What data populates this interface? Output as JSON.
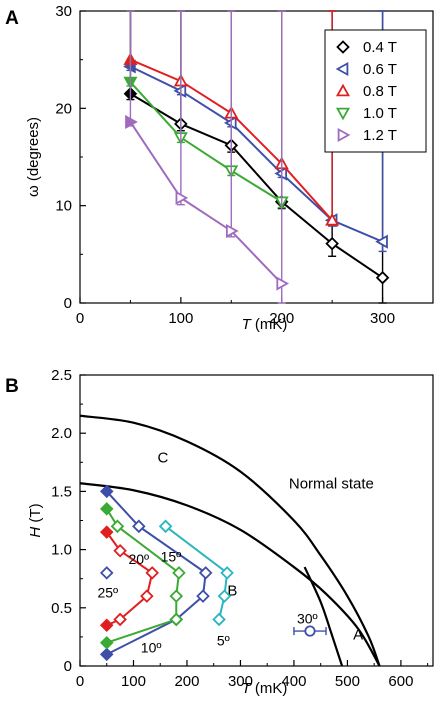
{
  "chart_data": [
    {
      "panel": "A",
      "type": "line",
      "xlabel": {
        "italic": "T",
        "rest": " (mK)"
      },
      "ylabel": "ω (degrees)",
      "xlim": [
        0,
        350
      ],
      "ylim": [
        0,
        30
      ],
      "xticks": [
        "0",
        "100",
        "200",
        "300"
      ],
      "yticks": [
        "0",
        "10",
        "20",
        "30"
      ],
      "legend_position": "top-right",
      "series": [
        {
          "name": "0.4 T",
          "color": "#000000",
          "marker": "diamond",
          "x": [
            50,
            100,
            150,
            200,
            250,
            300
          ],
          "y": [
            21.5,
            18.4,
            16.2,
            10.4,
            6.1,
            2.6
          ],
          "err": [
            0.6,
            0.7,
            0.7,
            0.7,
            1.3,
            2.8
          ]
        },
        {
          "name": "0.6 T",
          "color": "#3d4fa8",
          "marker": "triangle-left",
          "x": [
            50,
            100,
            150,
            200,
            250,
            300
          ],
          "y": [
            24.3,
            21.8,
            18.5,
            13.3,
            8.5,
            6.3
          ],
          "err": [
            0.4,
            0.4,
            0.4,
            0.4,
            0.6,
            1.0
          ]
        },
        {
          "name": "0.8 T",
          "color": "#e02020",
          "marker": "triangle-up",
          "x": [
            50,
            100,
            150,
            200,
            250
          ],
          "y": [
            25.0,
            22.8,
            19.5,
            14.3,
            8.5
          ],
          "err": [
            0.4,
            0.4,
            0.4,
            0.4,
            0.5
          ]
        },
        {
          "name": "1.0 T",
          "color": "#3aaa35",
          "marker": "triangle-down",
          "x": [
            50,
            100,
            150,
            200
          ],
          "y": [
            22.7,
            17.0,
            13.6,
            10.4
          ],
          "err": [
            0.4,
            0.5,
            0.5,
            0.6
          ]
        },
        {
          "name": "1.2 T",
          "color": "#a06bbf",
          "marker": "triangle-right",
          "x": [
            50,
            100,
            150,
            200
          ],
          "y": [
            18.6,
            10.8,
            7.4,
            2.0
          ],
          "err": [
            0.4,
            0.7,
            0.6,
            2.2
          ]
        }
      ]
    },
    {
      "panel": "B",
      "type": "scatter",
      "xlabel": {
        "italic": "T",
        "rest": " (mK)"
      },
      "ylabel": {
        "italic": "H",
        "rest": " (T)"
      },
      "xlim": [
        0,
        660
      ],
      "ylim": [
        0,
        2.5
      ],
      "xticks": [
        "0",
        "100",
        "200",
        "300",
        "400",
        "500",
        "600"
      ],
      "yticks": [
        "0",
        "0.5",
        "1.0",
        "1.5",
        "2.0",
        "2.5"
      ],
      "region_labels": [
        {
          "text": "C",
          "x": 155,
          "y": 1.79
        },
        {
          "text": "Normal state",
          "x": 470,
          "y": 1.57
        },
        {
          "text": "B",
          "x": 285,
          "y": 0.65
        },
        {
          "text": "A",
          "x": 520,
          "y": 0.27
        }
      ],
      "angle_labels": [
        {
          "text": "25º",
          "x": 52,
          "y": 0.63
        },
        {
          "text": "20º",
          "x": 110,
          "y": 0.92
        },
        {
          "text": "15º",
          "x": 170,
          "y": 0.94
        },
        {
          "text": "10º",
          "x": 133,
          "y": 0.16
        },
        {
          "text": "5º",
          "x": 268,
          "y": 0.22
        },
        {
          "text": "30º",
          "x": 425,
          "y": 0.41
        }
      ],
      "boundaries": [
        {
          "x": [
            0,
            100,
            200,
            300,
            400,
            450,
            500,
            540,
            560
          ],
          "y": [
            2.15,
            2.09,
            1.93,
            1.67,
            1.25,
            0.95,
            0.6,
            0.25,
            0.0
          ]
        },
        {
          "x": [
            0,
            100,
            200,
            300,
            400,
            460,
            520,
            560
          ],
          "y": [
            1.57,
            1.51,
            1.38,
            1.17,
            0.85,
            0.62,
            0.32,
            0.0
          ]
        },
        {
          "x": [
            420,
            450,
            470,
            490
          ],
          "y": [
            0.85,
            0.55,
            0.28,
            0.0
          ]
        }
      ],
      "series": [
        {
          "label": "10º",
          "color": "#3d4fa8",
          "x": [
            50,
            180,
            230,
            235,
            110,
            50
          ],
          "y": [
            0.1,
            0.4,
            0.6,
            0.8,
            1.2,
            1.5
          ],
          "filled": [
            true,
            false,
            false,
            false,
            false,
            true
          ]
        },
        {
          "label": "15º",
          "color": "#3aaa35",
          "x": [
            50,
            180,
            180,
            185,
            70,
            50
          ],
          "y": [
            0.2,
            0.4,
            0.6,
            0.8,
            1.2,
            1.35
          ],
          "filled": [
            true,
            false,
            false,
            false,
            false,
            true
          ]
        },
        {
          "label": "20º",
          "color": "#e02020",
          "x": [
            50,
            75,
            125,
            135,
            75,
            50
          ],
          "y": [
            0.35,
            0.4,
            0.6,
            0.8,
            0.99,
            1.15
          ],
          "filled": [
            true,
            false,
            false,
            false,
            false,
            true
          ]
        },
        {
          "label": "5º",
          "color": "#29b6c2",
          "x": [
            260,
            270,
            275,
            160
          ],
          "y": [
            0.4,
            0.6,
            0.8,
            1.2
          ],
          "filled": [
            false,
            false,
            false,
            false
          ]
        },
        {
          "label": "25º",
          "color": "#3d4fa8",
          "x": [
            50
          ],
          "y": [
            0.8
          ],
          "filled": [
            false
          ]
        },
        {
          "label": "30º",
          "color": "#3d4fa8",
          "marker": "circle",
          "x": [
            430
          ],
          "y": [
            0.3
          ],
          "xerr": [
            30
          ],
          "filled": [
            false
          ]
        }
      ]
    }
  ]
}
